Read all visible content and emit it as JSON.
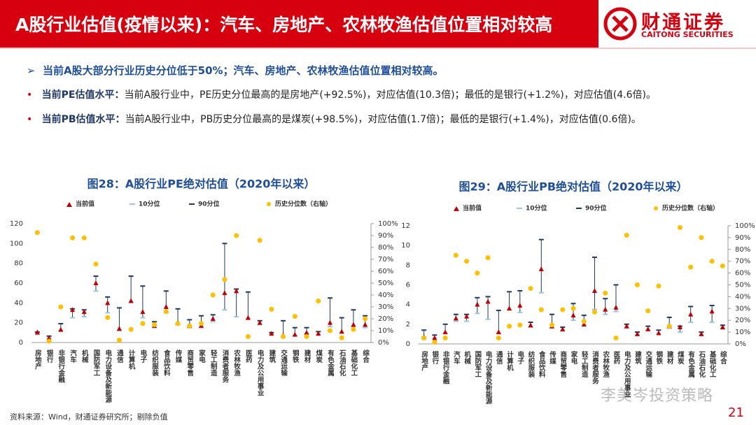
{
  "header": {
    "title": "A股行业估值(疫情以来)：汽车、房地产、农林牧渔估值位置相对较高",
    "logo_cn": "财通证券",
    "logo_en": "CAITONG SECURITIES"
  },
  "bullets": [
    {
      "text": "当前A股大部分行业历史分位低于50%；汽车、房地产、农林牧渔估值位置相对较高。"
    },
    {
      "label": "当前PE估值水平：",
      "text": "当前A股行业中，PE历史分位最高的是房地产(+92.5%)，对应估值(10.3倍)；最低的是银行(+1.2%)，对应估值(4.6倍)。"
    },
    {
      "label": "当前PB估值水平：",
      "text": "当前A股行业中，PB历史分位最高的是煤炭(+98.5%)，对应估值(1.7倍)；最低的是银行(+1.4%)，对应估值(0.6倍)。"
    }
  ],
  "chart_data": [
    {
      "type": "range",
      "title": "图28：A股行业PE绝对估值（2020年以来）",
      "categories": [
        "房地产",
        "银行",
        "非银行金融",
        "汽车",
        "机械",
        "国防军工",
        "电力设备及新能源",
        "通信",
        "计算机",
        "电子",
        "纺织服装",
        "食品饮料",
        "传媒",
        "商贸零售",
        "家电",
        "轻工制造",
        "消费者服务",
        "农林牧渔",
        "医药",
        "电力及公用事业",
        "建筑",
        "交通运输",
        "钢铁",
        "建材",
        "煤炭",
        "有色金属",
        "石油石化",
        "基础化工",
        "综合"
      ],
      "series": [
        {
          "name": "当前值",
          "color": "#c00000",
          "values": [
            10.3,
            4.6,
            13,
            33,
            31,
            60,
            40,
            14,
            42,
            31,
            17,
            36,
            20,
            17,
            17,
            24,
            50,
            52,
            25,
            20,
            9,
            7,
            8,
            10,
            9,
            20,
            11,
            18,
            18
          ]
        },
        {
          "name": "10分位",
          "color": "#9dc3e6",
          "values": [
            8,
            4.5,
            12,
            25,
            26,
            52,
            30,
            12,
            41,
            25,
            15,
            30,
            18,
            15,
            15,
            21,
            33,
            26,
            24,
            18,
            8,
            6,
            7,
            9,
            8,
            16,
            10,
            16,
            15
          ]
        },
        {
          "name": "90分位",
          "color": "#1f3864",
          "values": [
            10.5,
            6.5,
            19,
            34,
            33,
            67,
            46,
            35,
            67,
            57,
            21,
            52,
            34,
            23,
            27,
            28,
            100,
            54,
            51,
            22,
            10,
            22,
            15,
            15,
            11,
            45,
            25,
            33,
            27
          ]
        },
        {
          "name": "历史分位数（右轴）",
          "color": "#ffc000",
          "axis": "y2",
          "values": [
            92.5,
            1.2,
            30,
            88,
            88,
            66,
            21,
            2,
            11,
            16,
            15,
            26,
            16,
            14,
            16,
            40,
            53,
            90,
            5,
            86,
            28,
            5,
            22,
            5,
            35,
            10,
            4,
            11,
            20
          ]
        }
      ],
      "ylim": [
        0,
        120
      ],
      "yticks": [
        0,
        20,
        40,
        60,
        80,
        100,
        120
      ],
      "y2lim": [
        0,
        100
      ],
      "y2ticks": [
        {
          "value": 0,
          "label": "0%"
        },
        {
          "value": 10,
          "label": "10%"
        },
        {
          "value": 20,
          "label": "20%"
        },
        {
          "value": 30,
          "label": "30%"
        },
        {
          "value": 40,
          "label": "40%"
        },
        {
          "value": 50,
          "label": "50%"
        },
        {
          "value": 60,
          "label": "60%"
        },
        {
          "value": 70,
          "label": "70%"
        },
        {
          "value": 80,
          "label": "80%"
        },
        {
          "value": 90,
          "label": "90%"
        },
        {
          "value": 100,
          "label": "100%"
        }
      ]
    },
    {
      "type": "range",
      "title": "图29：A股行业PB绝对估值（2020年以来）",
      "categories": [
        "房地产",
        "银行",
        "非银行金融",
        "汽车",
        "机械",
        "国防军工",
        "电力设备及新能源",
        "通信",
        "计算机",
        "电子",
        "纺织服装",
        "食品饮料",
        "传媒",
        "商贸零售",
        "家电",
        "轻工制造",
        "消费者服务",
        "农林牧渔",
        "医药",
        "电力及公用事业",
        "建筑",
        "交通运输",
        "钢铁",
        "建材",
        "煤炭",
        "有色金属",
        "石油石化",
        "基础化工",
        "综合"
      ],
      "series": [
        {
          "name": "当前值",
          "color": "#c00000",
          "values": [
            0.7,
            0.6,
            1.2,
            2.6,
            2.8,
            4.0,
            4.3,
            1.2,
            3.6,
            3.9,
            1.9,
            7.6,
            1.8,
            1.5,
            2.9,
            2.0,
            5.4,
            3.5,
            3.7,
            1.8,
            1.0,
            1.5,
            1.1,
            1.8,
            1.7,
            3.0,
            1.0,
            3.3,
            1.7
          ]
        },
        {
          "name": "10分位",
          "color": "#9dc3e6",
          "values": [
            0.7,
            0.6,
            1.1,
            2.3,
            2.3,
            3.1,
            2.5,
            1.1,
            3.5,
            3.2,
            1.7,
            5.2,
            1.6,
            1.3,
            2.4,
            1.8,
            3.5,
            3.0,
            3.3,
            1.6,
            0.9,
            1.4,
            1.0,
            1.6,
            1.2,
            2.2,
            0.9,
            2.2,
            1.5
          ]
        },
        {
          "name": "90分位",
          "color": "#1f3864",
          "values": [
            1.4,
            0.9,
            2.0,
            3.0,
            3.0,
            4.7,
            4.8,
            3.4,
            5.3,
            5.4,
            2.2,
            10.6,
            3.0,
            1.7,
            4.1,
            2.9,
            8.8,
            4.6,
            6.0,
            2.0,
            1.2,
            1.8,
            1.4,
            2.7,
            1.8,
            3.8,
            1.2,
            3.9,
            1.9
          ]
        },
        {
          "name": "历史分位数（右轴）",
          "color": "#ffc000",
          "axis": "y2",
          "values": [
            5,
            1.4,
            5,
            75,
            70,
            60,
            73,
            5,
            15,
            16,
            47,
            29,
            16,
            29,
            30,
            19,
            27,
            43,
            5,
            92,
            50,
            28,
            49,
            15,
            98.5,
            65,
            90,
            70,
            66
          ]
        }
      ],
      "ylim": [
        0,
        12
      ],
      "yticks": [
        0,
        2,
        4,
        6,
        8,
        10,
        12
      ],
      "y2lim": [
        0,
        100
      ],
      "y2ticks": [
        {
          "value": 0,
          "label": "0%"
        },
        {
          "value": 10,
          "label": "10%"
        },
        {
          "value": 20,
          "label": "20%"
        },
        {
          "value": 30,
          "label": "30%"
        },
        {
          "value": 40,
          "label": "40%"
        },
        {
          "value": 50,
          "label": "50%"
        },
        {
          "value": 60,
          "label": "60%"
        },
        {
          "value": 70,
          "label": "70%"
        },
        {
          "value": 80,
          "label": "80%"
        },
        {
          "value": 90,
          "label": "90%"
        },
        {
          "value": 100,
          "label": "100%"
        }
      ]
    }
  ],
  "footer": {
    "source": "资料来源：Wind，财通证券研究所；剔除负值",
    "page": "21",
    "watermark": "李美岑投资策略"
  }
}
